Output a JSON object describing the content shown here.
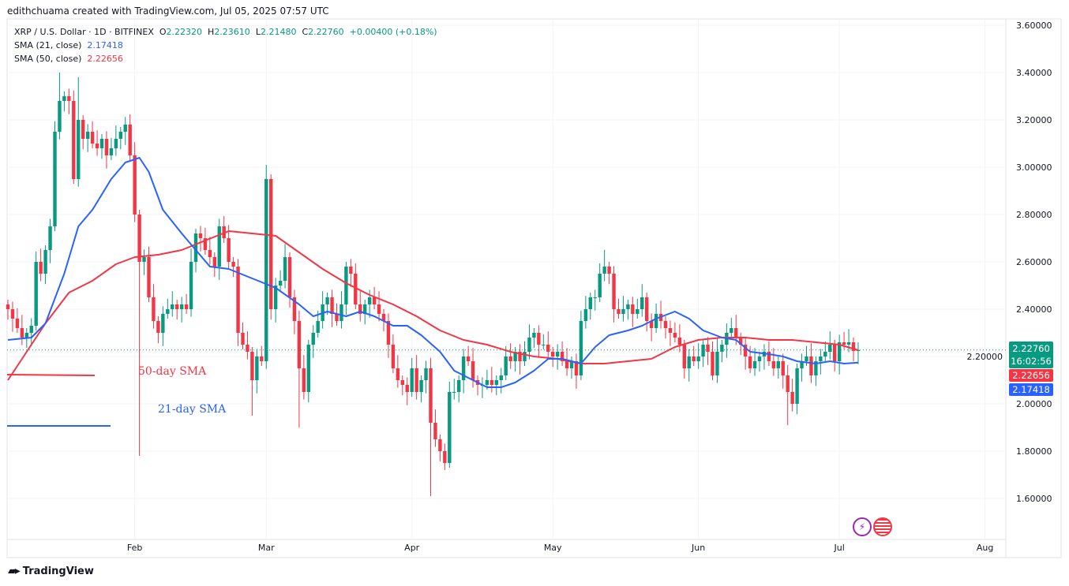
{
  "header": {
    "credit": "edithchuama created with TradingView.com, Jul 05, 2025 07:57 UTC"
  },
  "legend": {
    "symbol": "XRP / U.S. Dollar · 1D · BITFINEX",
    "o_label": "O",
    "o": "2.22320",
    "h_label": "H",
    "h": "2.23610",
    "l_label": "L",
    "l": "2.21480",
    "c_label": "C",
    "c": "2.22760",
    "change": "+0.00400 (+0.18%)",
    "sma21_label": "SMA (21, close)",
    "sma21": "2.17418",
    "sma50_label": "SMA (50, close)",
    "sma50": "2.22656"
  },
  "tags": {
    "price": "2.22760",
    "countdown": "16:02:56",
    "sma50": "2.22656",
    "sma21": "2.17418"
  },
  "annotations": {
    "sma50": "50-day SMA",
    "sma21": "21-day SMA"
  },
  "footer": {
    "brand": "TradingView"
  },
  "colors": {
    "up": "#089981",
    "down": "#f23645",
    "sma21": "#2962ff",
    "sma50": "#f23645"
  },
  "chart_data": {
    "type": "candlestick",
    "start_date": "2025-01-05",
    "interval": "1D",
    "ylim": [
      1.45,
      3.65
    ],
    "y_ticks": [
      "3.60000",
      "3.40000",
      "3.20000",
      "3.00000",
      "2.80000",
      "2.60000",
      "2.40000",
      "2.20000",
      "2.00000",
      "1.80000",
      "1.60000"
    ],
    "x_ticks": [
      {
        "label": "Feb",
        "day": 27
      },
      {
        "label": "Mar",
        "day": 55
      },
      {
        "label": "Apr",
        "day": 86
      },
      {
        "label": "May",
        "day": 116
      },
      {
        "label": "Jun",
        "day": 147
      },
      {
        "label": "Jul",
        "day": 177
      },
      {
        "label": "Aug",
        "day": 208
      }
    ],
    "closes": [
      2.4,
      2.36,
      2.32,
      2.28,
      2.3,
      2.33,
      2.6,
      2.55,
      2.65,
      2.75,
      3.15,
      3.28,
      3.3,
      3.28,
      2.95,
      3.2,
      3.12,
      3.15,
      3.1,
      3.08,
      3.12,
      3.05,
      3.08,
      3.12,
      3.15,
      3.18,
      3.05,
      2.8,
      2.6,
      2.62,
      2.45,
      2.35,
      2.3,
      2.38,
      2.4,
      2.42,
      2.4,
      2.42,
      2.4,
      2.6,
      2.72,
      2.7,
      2.65,
      2.62,
      2.58,
      2.75,
      2.7,
      2.6,
      2.58,
      2.3,
      2.25,
      2.22,
      2.1,
      2.2,
      2.18,
      2.95,
      2.4,
      2.5,
      2.52,
      2.62,
      2.45,
      2.35,
      2.15,
      2.05,
      2.25,
      2.3,
      2.35,
      2.42,
      2.45,
      2.38,
      2.35,
      2.42,
      2.58,
      2.55,
      2.42,
      2.38,
      2.42,
      2.45,
      2.42,
      2.38,
      2.35,
      2.25,
      2.15,
      2.1,
      2.08,
      2.05,
      2.15,
      2.05,
      2.1,
      2.15,
      1.92,
      1.85,
      1.8,
      1.75,
      2.05,
      2.05,
      2.1,
      2.2,
      2.18,
      2.1,
      2.08,
      2.08,
      2.1,
      2.08,
      2.1,
      2.12,
      2.2,
      2.18,
      2.22,
      2.18,
      2.22,
      2.28,
      2.3,
      2.25,
      2.25,
      2.22,
      2.2,
      2.22,
      2.18,
      2.15,
      2.18,
      2.12,
      2.35,
      2.4,
      2.45,
      2.45,
      2.55,
      2.58,
      2.55,
      2.4,
      2.38,
      2.4,
      2.42,
      2.38,
      2.4,
      2.45,
      2.35,
      2.32,
      2.38,
      2.35,
      2.32,
      2.3,
      2.28,
      2.25,
      2.15,
      2.2,
      2.18,
      2.2,
      2.25,
      2.22,
      2.12,
      2.22,
      2.25,
      2.3,
      2.32,
      2.28,
      2.25,
      2.2,
      2.15,
      2.18,
      2.2,
      2.22,
      2.18,
      2.15,
      2.18,
      2.12,
      2.05,
      2.0,
      2.15,
      2.18,
      2.2,
      2.12,
      2.18,
      2.2,
      2.22,
      2.25,
      2.18,
      2.26,
      2.25,
      2.26,
      2.2232,
      2.2276
    ],
    "wick_extremes": {
      "highs": {
        "11": 3.4,
        "15": 3.38,
        "55": 3.01,
        "127": 2.65,
        "153": 2.34
      },
      "lows": {
        "28": 1.78,
        "52": 1.95,
        "62": 1.9,
        "90": 1.61,
        "93": 1.72,
        "166": 1.91
      }
    },
    "series": [
      {
        "name": "SMA (21, close)",
        "points": [
          [
            0,
            2.27
          ],
          [
            5,
            2.28
          ],
          [
            8,
            2.34
          ],
          [
            12,
            2.55
          ],
          [
            15,
            2.75
          ],
          [
            18,
            2.82
          ],
          [
            22,
            2.95
          ],
          [
            25,
            3.02
          ],
          [
            28,
            3.04
          ],
          [
            30,
            2.98
          ],
          [
            33,
            2.82
          ],
          [
            37,
            2.72
          ],
          [
            40,
            2.65
          ],
          [
            43,
            2.58
          ],
          [
            47,
            2.57
          ],
          [
            52,
            2.53
          ],
          [
            57,
            2.49
          ],
          [
            62,
            2.42
          ],
          [
            65,
            2.37
          ],
          [
            68,
            2.39
          ],
          [
            72,
            2.37
          ],
          [
            75,
            2.39
          ],
          [
            78,
            2.37
          ],
          [
            82,
            2.33
          ],
          [
            85,
            2.33
          ],
          [
            88,
            2.29
          ],
          [
            92,
            2.22
          ],
          [
            95,
            2.14
          ],
          [
            98,
            2.11
          ],
          [
            102,
            2.07
          ],
          [
            105,
            2.07
          ],
          [
            108,
            2.09
          ],
          [
            112,
            2.14
          ],
          [
            115,
            2.19
          ],
          [
            118,
            2.19
          ],
          [
            122,
            2.17
          ],
          [
            125,
            2.24
          ],
          [
            128,
            2.29
          ],
          [
            132,
            2.31
          ],
          [
            135,
            2.33
          ],
          [
            138,
            2.36
          ],
          [
            142,
            2.39
          ],
          [
            145,
            2.36
          ],
          [
            148,
            2.31
          ],
          [
            152,
            2.28
          ],
          [
            155,
            2.27
          ],
          [
            158,
            2.22
          ],
          [
            162,
            2.21
          ],
          [
            165,
            2.2
          ],
          [
            168,
            2.18
          ],
          [
            172,
            2.17
          ],
          [
            175,
            2.18
          ],
          [
            178,
            2.17
          ],
          [
            181,
            2.174
          ]
        ]
      },
      {
        "name": "SMA (50, close)",
        "points": [
          [
            0,
            2.1
          ],
          [
            3,
            2.19
          ],
          [
            8,
            2.34
          ],
          [
            13,
            2.47
          ],
          [
            18,
            2.52
          ],
          [
            23,
            2.59
          ],
          [
            27,
            2.62
          ],
          [
            32,
            2.63
          ],
          [
            37,
            2.65
          ],
          [
            42,
            2.69
          ],
          [
            47,
            2.73
          ],
          [
            52,
            2.72
          ],
          [
            57,
            2.71
          ],
          [
            62,
            2.64
          ],
          [
            67,
            2.57
          ],
          [
            72,
            2.51
          ],
          [
            77,
            2.46
          ],
          [
            82,
            2.42
          ],
          [
            87,
            2.37
          ],
          [
            92,
            2.31
          ],
          [
            97,
            2.27
          ],
          [
            102,
            2.25
          ],
          [
            107,
            2.22
          ],
          [
            112,
            2.2
          ],
          [
            117,
            2.19
          ],
          [
            122,
            2.17
          ],
          [
            127,
            2.17
          ],
          [
            132,
            2.18
          ],
          [
            137,
            2.19
          ],
          [
            142,
            2.24
          ],
          [
            147,
            2.27
          ],
          [
            152,
            2.28
          ],
          [
            157,
            2.28
          ],
          [
            162,
            2.27
          ],
          [
            167,
            2.27
          ],
          [
            172,
            2.26
          ],
          [
            177,
            2.25
          ],
          [
            181,
            2.2266
          ]
        ]
      }
    ]
  }
}
